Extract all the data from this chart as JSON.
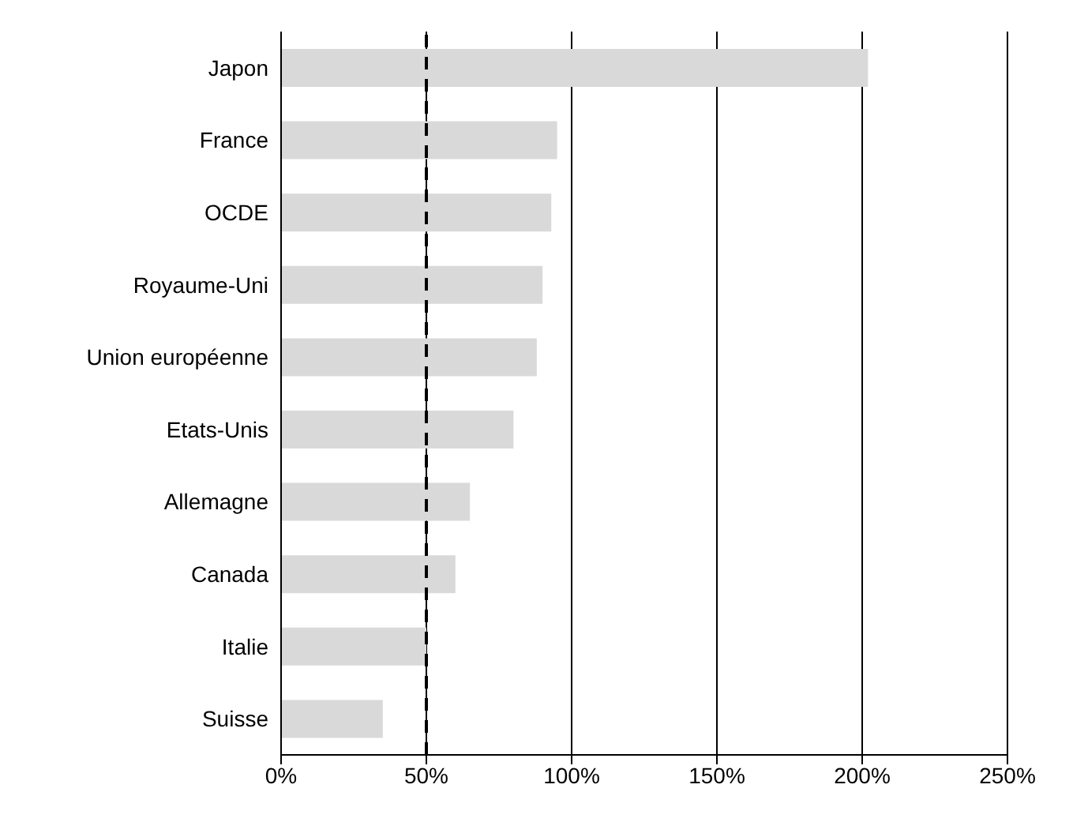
{
  "chart_data": {
    "type": "bar",
    "orientation": "horizontal",
    "categories": [
      "Japon",
      "France",
      "OCDE",
      "Royaume-Uni",
      "Union européenne",
      "Etats-Unis",
      "Allemagne",
      "Canada",
      "Italie",
      "Suisse"
    ],
    "values": [
      202,
      95,
      93,
      90,
      88,
      80,
      65,
      60,
      50,
      35
    ],
    "color": "#d9d9d9",
    "xlim": [
      0,
      250
    ],
    "xticks": [
      {
        "value": 0,
        "label": "0%"
      },
      {
        "value": 50,
        "label": "50%"
      },
      {
        "value": 100,
        "label": "100%"
      },
      {
        "value": 150,
        "label": "150%"
      },
      {
        "value": 200,
        "label": "200%"
      },
      {
        "value": 250,
        "label": "250%"
      }
    ],
    "grid": "x",
    "ref_lines": [
      {
        "axis": "x",
        "value": 50,
        "line_style": "dashed",
        "color": "#000000"
      }
    ]
  }
}
